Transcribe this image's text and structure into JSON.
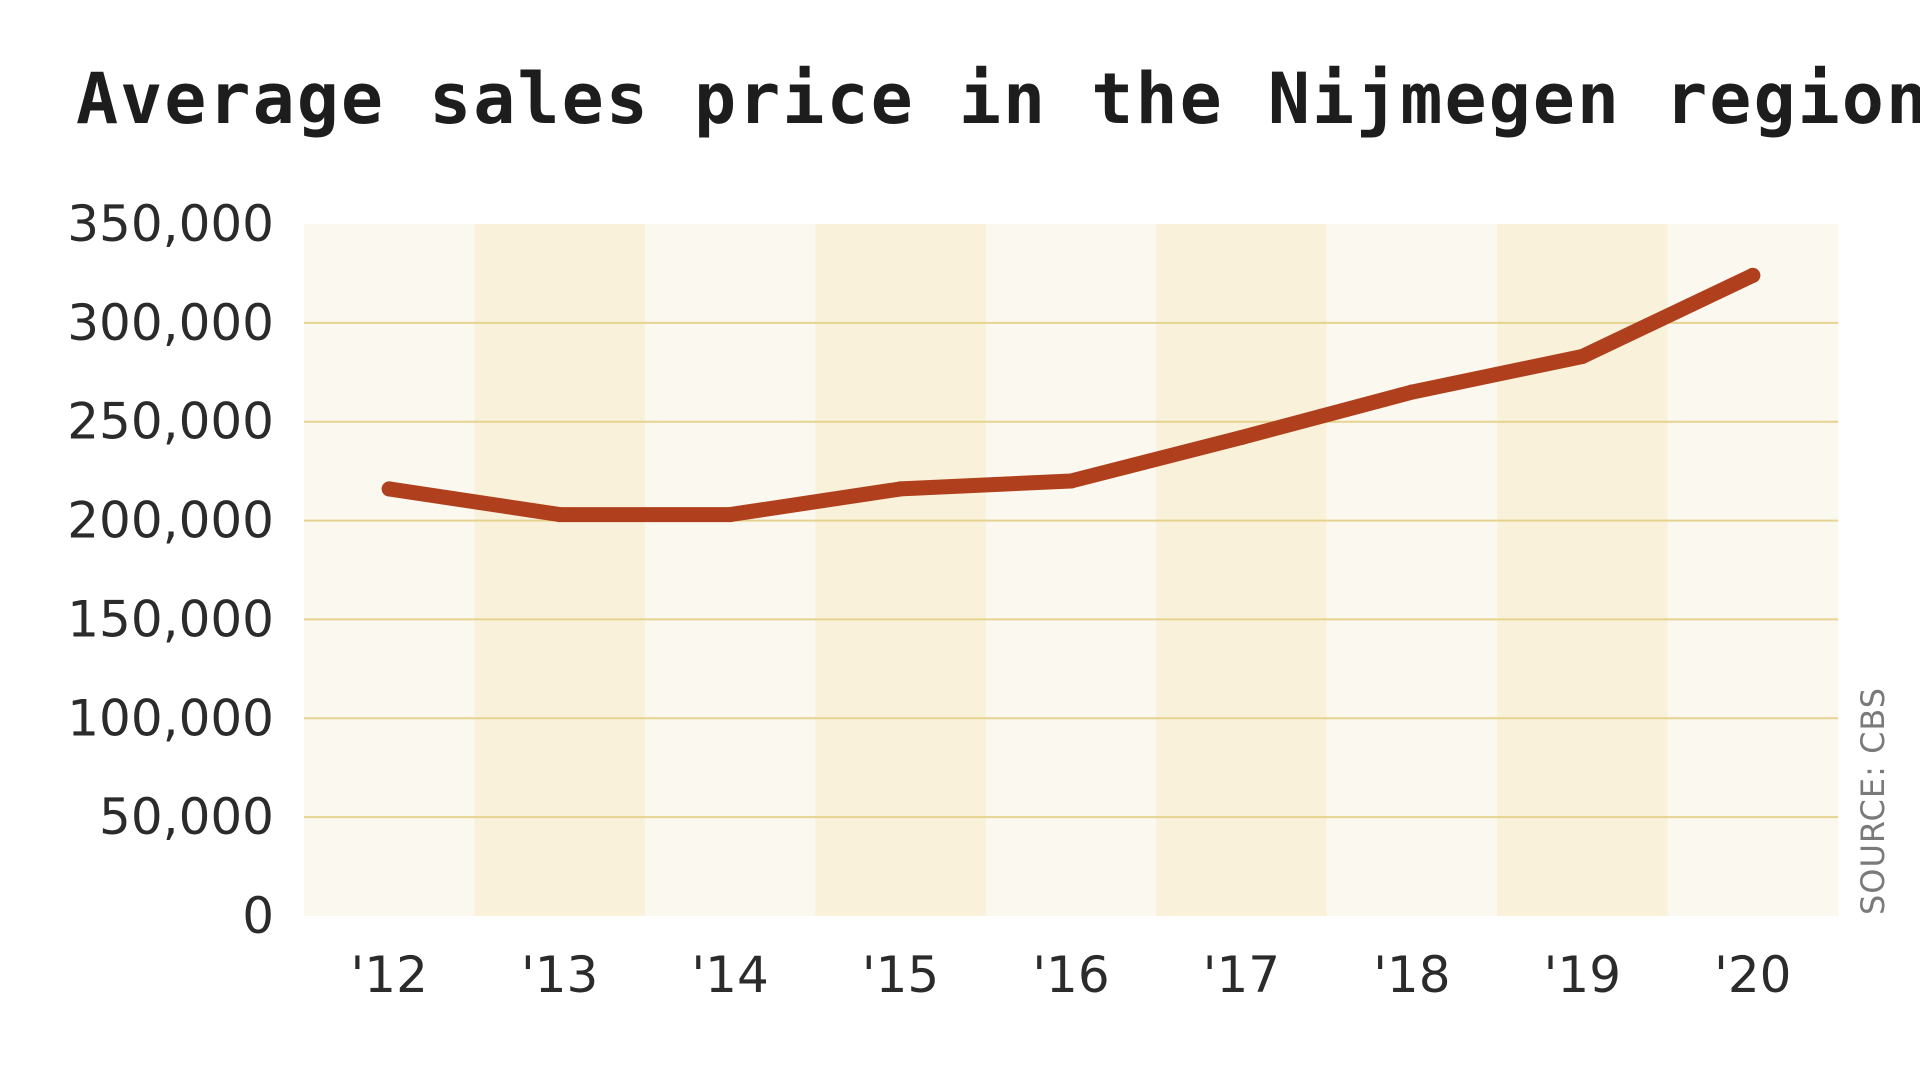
{
  "chart_data": {
    "type": "line",
    "title": "Average sales price in the Nijmegen region",
    "xlabel": "",
    "ylabel": "",
    "categories": [
      "'12",
      "'13",
      "'14",
      "'15",
      "'16",
      "'17",
      "'18",
      "'19",
      "'20"
    ],
    "series": [
      {
        "values": [
          216000,
          203000,
          203000,
          216000,
          220000,
          242000,
          265000,
          283000,
          324000
        ]
      }
    ],
    "ylim": [
      0,
      350000
    ],
    "yticks": [
      0,
      50000,
      100000,
      150000,
      200000,
      250000,
      300000,
      350000
    ],
    "ytick_labels": [
      "0",
      "50,000",
      "100,000",
      "150,000",
      "200,000",
      "250,000",
      "300,000",
      "350,000"
    ],
    "grid": "horizontal",
    "legend": "none",
    "source": "SOURCE: CBS",
    "colors": {
      "line": "#b0401d",
      "gridline": "#e6d38f",
      "band_light": "#fbf8ef",
      "band_dark": "#f9f1da"
    }
  }
}
